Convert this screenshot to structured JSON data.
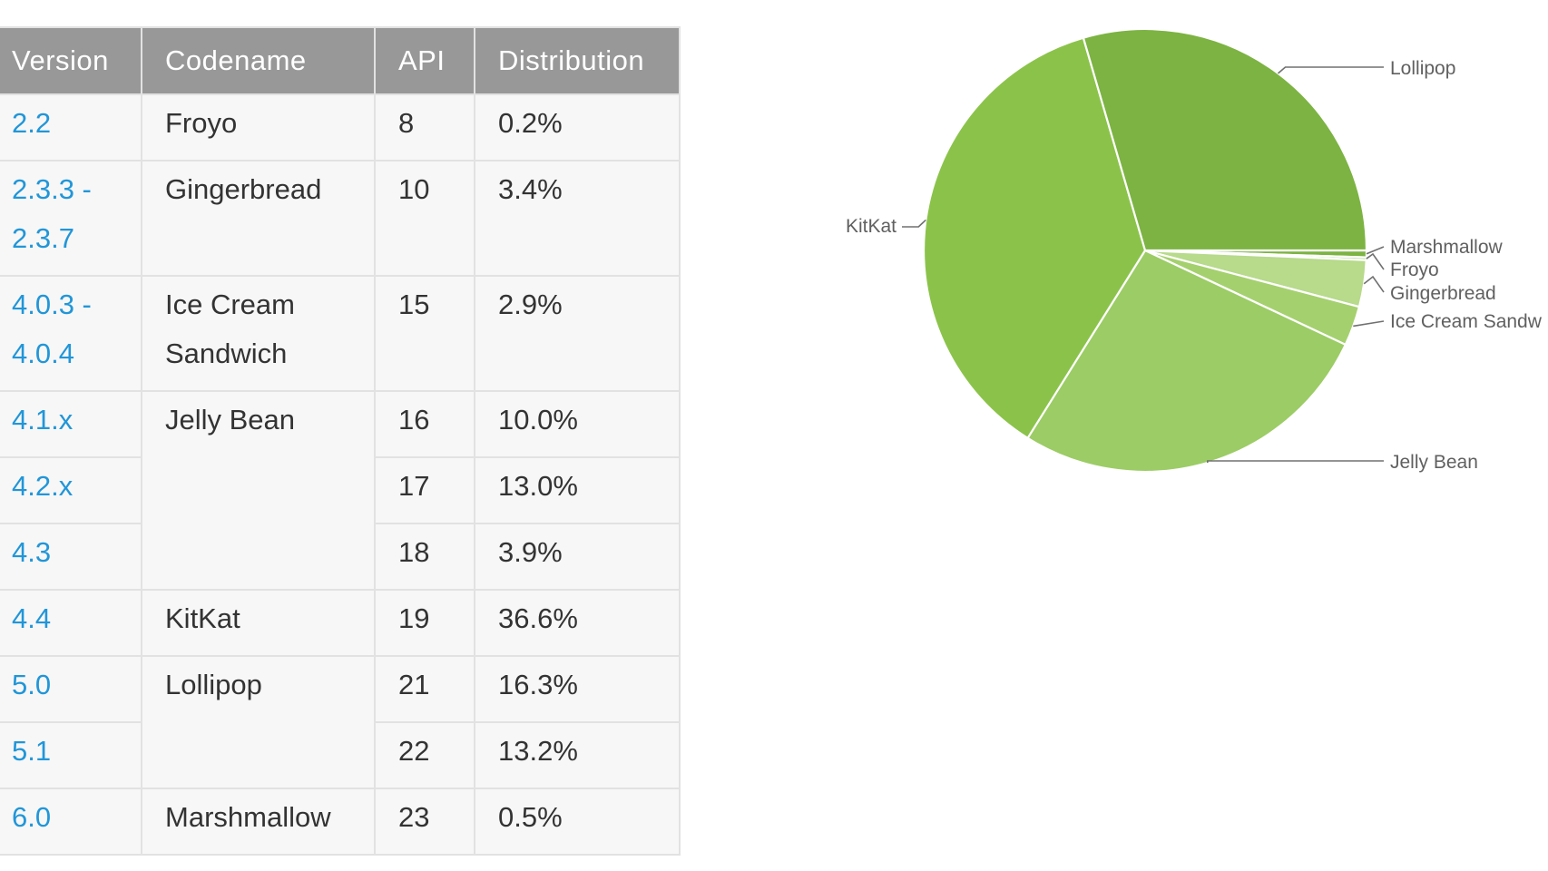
{
  "table": {
    "headers": [
      "Version",
      "Codename",
      "API",
      "Distribution"
    ],
    "rows": [
      {
        "version": "2.2",
        "codename": "Froyo",
        "api": "8",
        "distribution": "0.2%"
      },
      {
        "version": "2.3.3 - 2.3.7",
        "codename": "Gingerbread",
        "api": "10",
        "distribution": "3.4%"
      },
      {
        "version": "4.0.3 - 4.0.4",
        "codename": "Ice Cream Sandwich",
        "api": "15",
        "distribution": "2.9%"
      },
      {
        "version": "4.1.x",
        "codename": "Jelly Bean",
        "api": "16",
        "distribution": "10.0%"
      },
      {
        "version": "4.2.x",
        "codename": "",
        "api": "17",
        "distribution": "13.0%"
      },
      {
        "version": "4.3",
        "codename": "",
        "api": "18",
        "distribution": "3.9%"
      },
      {
        "version": "4.4",
        "codename": "KitKat",
        "api": "19",
        "distribution": "36.6%"
      },
      {
        "version": "5.0",
        "codename": "Lollipop",
        "api": "21",
        "distribution": "16.3%"
      },
      {
        "version": "5.1",
        "codename": "",
        "api": "22",
        "distribution": "13.2%"
      },
      {
        "version": "6.0",
        "codename": "Marshmallow",
        "api": "23",
        "distribution": "0.5%"
      }
    ]
  },
  "chart_data": {
    "type": "pie",
    "title": "",
    "start_angle_deg": 0,
    "direction": "clockwise",
    "slices": [
      {
        "name": "Marshmallow",
        "value": 0.5,
        "color": "#7cb342"
      },
      {
        "name": "Froyo",
        "value": 0.2,
        "color": "#aed581"
      },
      {
        "name": "Gingerbread",
        "value": 3.4,
        "color": "#b7da8b"
      },
      {
        "name": "Ice Cream Sandwich",
        "value": 2.9,
        "color": "#a5d06e"
      },
      {
        "name": "Jelly Bean",
        "value": 26.9,
        "color": "#9ccc65"
      },
      {
        "name": "KitKat",
        "value": 36.6,
        "color": "#8bc34a"
      },
      {
        "name": "Lollipop",
        "value": 29.5,
        "color": "#7cb342"
      }
    ],
    "labels": [
      {
        "text": "Lollipop"
      },
      {
        "text": "Marshmallow"
      },
      {
        "text": "Froyo"
      },
      {
        "text": "Gingerbread"
      },
      {
        "text": "Ice Cream Sandw"
      },
      {
        "text": "Jelly Bean"
      },
      {
        "text": "KitKat"
      }
    ]
  }
}
